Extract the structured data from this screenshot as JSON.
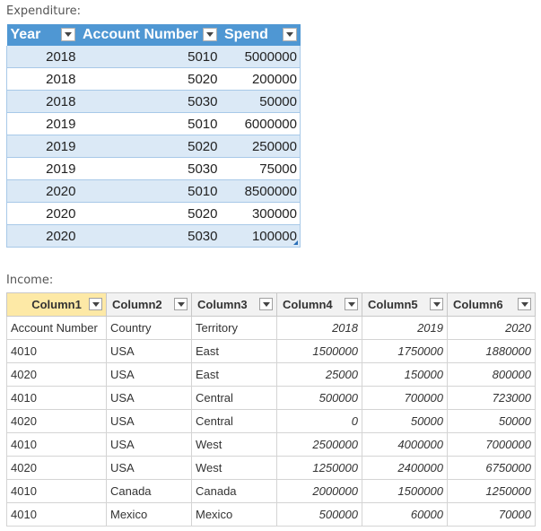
{
  "expenditure": {
    "caption": "Expenditure:",
    "headers": [
      "Year",
      "Account Number",
      "Spend"
    ],
    "rows": [
      [
        "2018",
        "5010",
        "5000000"
      ],
      [
        "2018",
        "5020",
        "200000"
      ],
      [
        "2018",
        "5030",
        "50000"
      ],
      [
        "2019",
        "5010",
        "6000000"
      ],
      [
        "2019",
        "5020",
        "250000"
      ],
      [
        "2019",
        "5030",
        "75000"
      ],
      [
        "2020",
        "5010",
        "8500000"
      ],
      [
        "2020",
        "5020",
        "300000"
      ],
      [
        "2020",
        "5030",
        "100000"
      ]
    ],
    "header_color": "#4f97d3",
    "band_color": "#dbe9f6"
  },
  "income": {
    "caption": "Income:",
    "headers": [
      "Column1",
      "Column2",
      "Column3",
      "Column4",
      "Column5",
      "Column6"
    ],
    "rows": [
      [
        "Account Number",
        "Country",
        "Territory",
        "2018",
        "2019",
        "2020"
      ],
      [
        "4010",
        "USA",
        "East",
        "1500000",
        "1750000",
        "1880000"
      ],
      [
        "4020",
        "USA",
        "East",
        "25000",
        "150000",
        "800000"
      ],
      [
        "4010",
        "USA",
        "Central",
        "500000",
        "700000",
        "723000"
      ],
      [
        "4020",
        "USA",
        "Central",
        "0",
        "50000",
        "50000"
      ],
      [
        "4010",
        "USA",
        "West",
        "2500000",
        "4000000",
        "7000000"
      ],
      [
        "4020",
        "USA",
        "West",
        "1250000",
        "2400000",
        "6750000"
      ],
      [
        "4010",
        "Canada",
        "Canada",
        "2000000",
        "1500000",
        "1250000"
      ],
      [
        "4010",
        "Mexico",
        "Mexico",
        "500000",
        "60000",
        "70000"
      ]
    ],
    "first_header_color": "#fde9a6"
  }
}
